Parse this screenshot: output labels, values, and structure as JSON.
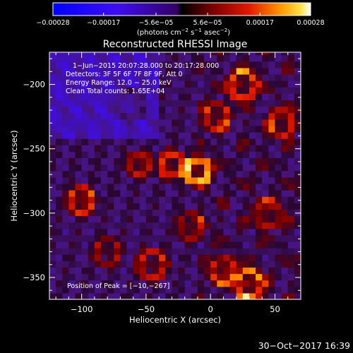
{
  "chart_data": {
    "type": "heatmap",
    "title": "Reconstructed RHESSI Image",
    "xlabel": "Heliocentric X (arcsec)",
    "ylabel": "Heliocentric Y (arcsec)",
    "xlim": [
      -125,
      70
    ],
    "ylim": [
      -367,
      -175
    ],
    "x_ticks": [
      -100,
      -50,
      0,
      50
    ],
    "x_tick_labels": [
      "−100",
      "−50",
      "0",
      "50"
    ],
    "y_ticks": [
      -200,
      -250,
      -300,
      -350
    ],
    "y_tick_labels": [
      "−200",
      "−250",
      "−300",
      "−350"
    ],
    "colorbar": {
      "range": [
        -0.00028,
        0.00028
      ],
      "ticks": [
        -0.00028,
        -0.00017,
        -5.6e-05,
        5.6e-05,
        0.00017,
        0.00028
      ],
      "tick_labels": [
        "−0.00028",
        "−0.00017",
        "−5.6e−05",
        "5.6e−05",
        "0.00017",
        "0.00028"
      ],
      "unit_main": "(photons cm",
      "unit_sup1": "−2",
      "unit_mid": " s",
      "unit_sup2": "−1",
      "unit_mid2": " asec",
      "unit_sup3": "−2",
      "unit_end": ")"
    },
    "info_lines": [
      "1−Jun−2015 20:07:28.000 to 20:17:28.000",
      "Detectors: 3F 5F 6F 7F 8F 9F, Att 0",
      "Energy Range: 12.0 − 25.0 keV",
      "Clean     Total counts: 1.65E+04"
    ],
    "peak_label": "Position of Peak = [−10,−267]",
    "peak": [
      -10,
      -267
    ],
    "grid": false
  },
  "footer": {
    "timestamp": "30−Oct−2017 16:39"
  }
}
